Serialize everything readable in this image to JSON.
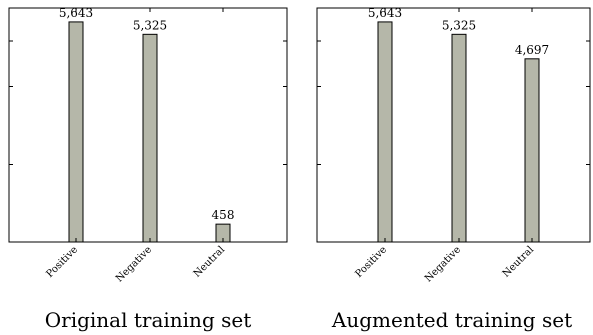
{
  "chart_data": [
    {
      "type": "bar",
      "title": "Original training set",
      "categories": [
        "Positive",
        "Negative",
        "Neutral"
      ],
      "values": [
        5643,
        5325,
        458
      ],
      "value_labels": [
        "5,643",
        "5,325",
        "458"
      ],
      "ylim": [
        0,
        6000
      ],
      "bar_color": "#b5b7a9",
      "grid": false
    },
    {
      "type": "bar",
      "title": "Augmented training set",
      "categories": [
        "Positive",
        "Negative",
        "Neutral"
      ],
      "values": [
        5643,
        5325,
        4697
      ],
      "value_labels": [
        "5,643",
        "5,325",
        "4,697"
      ],
      "ylim": [
        0,
        6000
      ],
      "bar_color": "#b5b7a9",
      "grid": false
    }
  ]
}
